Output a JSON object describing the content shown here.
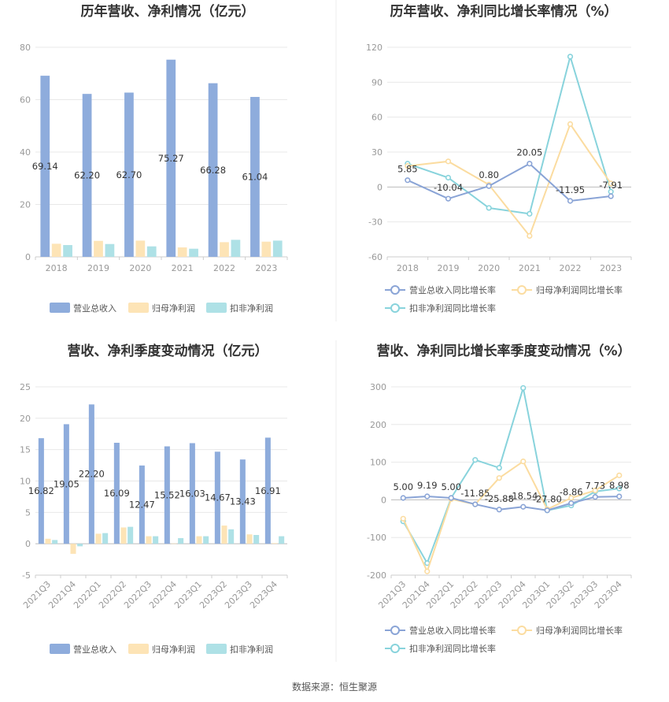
{
  "colors": {
    "revenue": "#8eacdc",
    "net_profit": "#fde4b6",
    "deducted_profit": "#aee1e6",
    "revenue_line": "#8aa4d6",
    "net_line": "#fbdca0",
    "deducted_line": "#88d3dc",
    "grid": "#e8e8e8",
    "axis": "#cccccc"
  },
  "legend": {
    "revenue": "营业总收入",
    "net_profit": "归母净利润",
    "deducted_profit": "扣非净利润",
    "revenue_growth": "营业总收入同比增长率",
    "net_growth": "归母净利润同比增长率",
    "deducted_growth": "扣非净利润同比增长率"
  },
  "source": "数据来源：恒生聚源",
  "chart_data": [
    {
      "id": "annual-bar",
      "type": "bar",
      "title": "历年营收、净利情况（亿元）",
      "categories": [
        "2018",
        "2019",
        "2020",
        "2021",
        "2022",
        "2023"
      ],
      "series": [
        {
          "name": "营业总收入",
          "values": [
            69.14,
            62.2,
            62.7,
            75.27,
            66.28,
            61.04
          ],
          "labels": [
            "69.14",
            "62.20",
            "62.70",
            "75.27",
            "66.28",
            "61.04"
          ]
        },
        {
          "name": "归母净利润",
          "values": [
            5.0,
            6.1,
            6.2,
            3.6,
            5.6,
            5.8
          ]
        },
        {
          "name": "扣非净利润",
          "values": [
            4.5,
            4.9,
            4.0,
            3.1,
            6.5,
            6.2
          ]
        }
      ],
      "yticks": [
        "0",
        "20",
        "40",
        "60",
        "80"
      ],
      "ylim": [
        0,
        80
      ]
    },
    {
      "id": "annual-line",
      "type": "line",
      "title": "历年营收、净利同比增长率情况（%）",
      "categories": [
        "2018",
        "2019",
        "2020",
        "2021",
        "2022",
        "2023"
      ],
      "series": [
        {
          "name": "营业总收入同比增长率",
          "values": [
            5.85,
            -10.04,
            0.8,
            20.05,
            -11.95,
            -7.91
          ],
          "labels": [
            "5.85",
            "-10.04",
            "0.80",
            "20.05",
            "-11.95",
            "-7.91"
          ]
        },
        {
          "name": "归母净利润同比增长率",
          "values": [
            18.0,
            22.0,
            2.0,
            -42.0,
            54.0,
            3.0
          ]
        },
        {
          "name": "扣非净利润同比增长率",
          "values": [
            20.0,
            8.0,
            -18.0,
            -23.0,
            112.0,
            -4.0
          ]
        }
      ],
      "yticks": [
        "-60",
        "-30",
        "0",
        "30",
        "60",
        "90",
        "120"
      ],
      "ylim": [
        -60,
        120
      ]
    },
    {
      "id": "quarter-bar",
      "type": "bar",
      "title": "营收、净利季度变动情况（亿元）",
      "categories": [
        "2021Q3",
        "2021Q4",
        "2022Q1",
        "2022Q2",
        "2022Q3",
        "2022Q4",
        "2023Q1",
        "2023Q2",
        "2023Q3",
        "2023Q4"
      ],
      "series": [
        {
          "name": "营业总收入",
          "values": [
            16.82,
            19.05,
            22.2,
            16.09,
            12.47,
            15.52,
            16.03,
            14.67,
            13.43,
            16.91
          ],
          "labels": [
            "16.82",
            "19.05",
            "22.20",
            "16.09",
            "12.47",
            "15.52",
            "16.03",
            "14.67",
            "13.43",
            "16.91"
          ]
        },
        {
          "name": "归母净利润",
          "values": [
            0.8,
            -1.6,
            1.6,
            2.6,
            1.2,
            0.05,
            1.2,
            2.9,
            1.5,
            0.1
          ]
        },
        {
          "name": "扣非净利润",
          "values": [
            0.6,
            -0.4,
            1.7,
            2.7,
            1.2,
            0.9,
            1.2,
            2.3,
            1.4,
            1.2
          ]
        }
      ],
      "yticks": [
        "-5",
        "0",
        "5",
        "10",
        "15",
        "20",
        "25"
      ],
      "ylim": [
        -5,
        25
      ]
    },
    {
      "id": "quarter-line",
      "type": "line",
      "title": "营收、净利同比增长率季度变动情况（%）",
      "categories": [
        "2021Q3",
        "2021Q4",
        "2022Q1",
        "2022Q2",
        "2022Q3",
        "2022Q4",
        "2023Q1",
        "2023Q2",
        "2023Q3",
        "2023Q4"
      ],
      "series": [
        {
          "name": "营业总收入同比增长率",
          "values": [
            5.0,
            9.19,
            5.0,
            -11.85,
            -25.88,
            -18.54,
            -27.8,
            -8.86,
            7.73,
            8.98
          ],
          "labels": [
            "5.00",
            "9.19",
            "5.00",
            "-11.85",
            "-25.88",
            "-18.54",
            "-27.80",
            "-8.86",
            "7.73",
            "8.98"
          ]
        },
        {
          "name": "归母净利润同比增长率",
          "values": [
            -50.0,
            -190.0,
            2.0,
            -12.0,
            58.0,
            102.0,
            -25.0,
            5.0,
            25.0,
            65.0
          ]
        },
        {
          "name": "扣非净利润同比增长率",
          "values": [
            -57.0,
            -168.0,
            5.0,
            106.0,
            85.0,
            297.0,
            -28.0,
            -15.0,
            22.0,
            30.0
          ]
        }
      ],
      "yticks": [
        "-200",
        "-100",
        "0",
        "100",
        "200",
        "300"
      ],
      "ylim": [
        -200,
        300
      ]
    }
  ]
}
